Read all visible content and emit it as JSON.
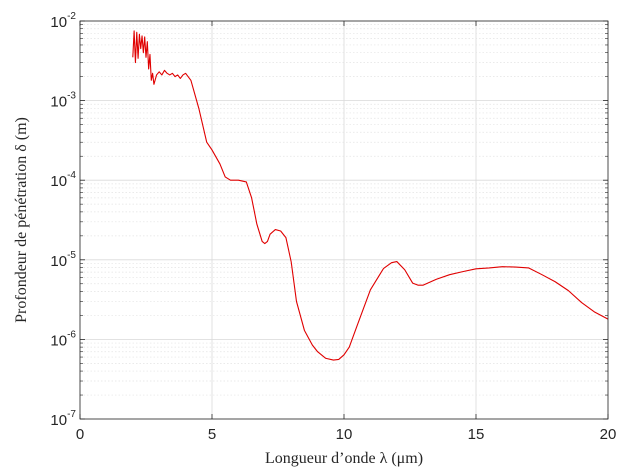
{
  "chart_data": {
    "type": "line",
    "title": "",
    "xlabel": "Longueur d’onde λ (μm)",
    "ylabel": "Profondeur de pénétration δ (m)",
    "xlim": [
      0,
      20
    ],
    "ylim": [
      1e-07,
      0.01
    ],
    "yscale": "log",
    "grid": true,
    "x_ticks": [
      {
        "value": 0,
        "label": "0"
      },
      {
        "value": 5,
        "label": "5"
      },
      {
        "value": 10,
        "label": "10"
      },
      {
        "value": 15,
        "label": "15"
      },
      {
        "value": 20,
        "label": "20"
      }
    ],
    "y_ticks": [
      {
        "value": 1e-07,
        "base": "10",
        "exp": "-7"
      },
      {
        "value": 1e-06,
        "base": "10",
        "exp": "-6"
      },
      {
        "value": 1e-05,
        "base": "10",
        "exp": "-5"
      },
      {
        "value": 0.0001,
        "base": "10",
        "exp": "-4"
      },
      {
        "value": 0.001,
        "base": "10",
        "exp": "-3"
      },
      {
        "value": 0.01,
        "base": "10",
        "exp": "-2"
      }
    ],
    "series": [
      {
        "color": "#e00000",
        "x": [
          2.0,
          2.05,
          2.1,
          2.15,
          2.2,
          2.25,
          2.3,
          2.35,
          2.4,
          2.45,
          2.5,
          2.55,
          2.6,
          2.65,
          2.7,
          2.75,
          2.8,
          2.9,
          3.0,
          3.1,
          3.2,
          3.3,
          3.4,
          3.5,
          3.6,
          3.7,
          3.8,
          3.9,
          4.0,
          4.2,
          4.5,
          4.8,
          5.0,
          5.3,
          5.5,
          5.7,
          6.0,
          6.3,
          6.5,
          6.7,
          6.9,
          7.0,
          7.1,
          7.2,
          7.4,
          7.6,
          7.8,
          8.0,
          8.2,
          8.5,
          8.8,
          9.0,
          9.3,
          9.6,
          9.8,
          10.0,
          10.2,
          10.5,
          11.0,
          11.5,
          11.8,
          12.0,
          12.3,
          12.6,
          12.8,
          13.0,
          13.5,
          14.0,
          14.5,
          15.0,
          15.5,
          16.0,
          16.5,
          17.0,
          17.5,
          18.0,
          18.5,
          19.0,
          19.5,
          20.0
        ],
        "y": [
          0.0035,
          0.0075,
          0.003,
          0.0072,
          0.0034,
          0.0068,
          0.0045,
          0.0065,
          0.004,
          0.0063,
          0.0035,
          0.0055,
          0.0025,
          0.0038,
          0.0018,
          0.0022,
          0.0016,
          0.0021,
          0.0023,
          0.0021,
          0.0024,
          0.0022,
          0.0021,
          0.0022,
          0.002,
          0.0021,
          0.0019,
          0.0021,
          0.0022,
          0.0018,
          0.0008,
          0.0003,
          0.00024,
          0.00016,
          0.00011,
          0.0001,
          0.0001,
          9.5e-05,
          6e-05,
          2.8e-05,
          1.7e-05,
          1.6e-05,
          1.7e-05,
          2.1e-05,
          2.4e-05,
          2.3e-05,
          1.9e-05,
          9.4e-06,
          3e-06,
          1.3e-06,
          8.5e-07,
          7e-07,
          5.8e-07,
          5.5e-07,
          5.6e-07,
          6.4e-07,
          8e-07,
          1.5e-06,
          4.2e-06,
          7.8e-06,
          9.2e-06,
          9.5e-06,
          7.5e-06,
          5.1e-06,
          4.8e-06,
          4.8e-06,
          5.7e-06,
          6.5e-06,
          7.1e-06,
          7.7e-06,
          7.9e-06,
          8.2e-06,
          8.1e-06,
          7.9e-06,
          6.5e-06,
          5.3e-06,
          4.1e-06,
          2.9e-06,
          2.2e-06,
          1.8e-06
        ]
      }
    ]
  }
}
